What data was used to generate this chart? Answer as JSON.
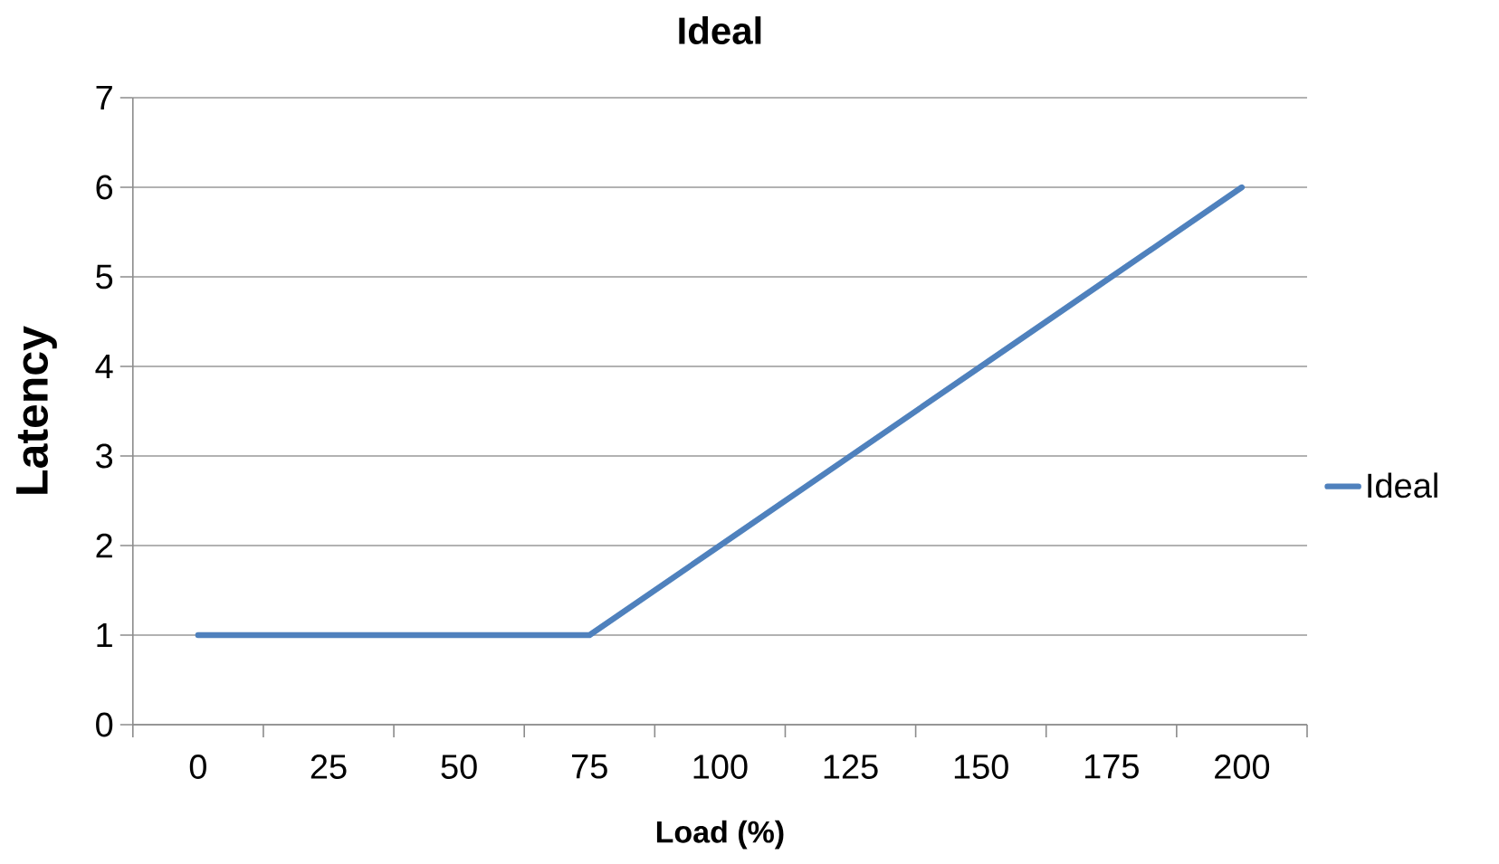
{
  "chart_data": {
    "type": "line",
    "title": "Ideal",
    "xlabel": "Load (%)",
    "ylabel": "Latency",
    "categories": [
      "0",
      "25",
      "50",
      "75",
      "100",
      "125",
      "150",
      "175",
      "200"
    ],
    "series": [
      {
        "name": "Ideal",
        "color": "#4f81bd",
        "values": [
          1,
          1,
          1,
          1,
          2,
          3,
          4,
          5,
          6
        ]
      }
    ],
    "ylim": [
      0,
      7
    ],
    "yticks": [
      0,
      1,
      2,
      3,
      4,
      5,
      6,
      7
    ],
    "grid": "y",
    "legend": "right",
    "marker": "none",
    "line_style": "solid"
  }
}
